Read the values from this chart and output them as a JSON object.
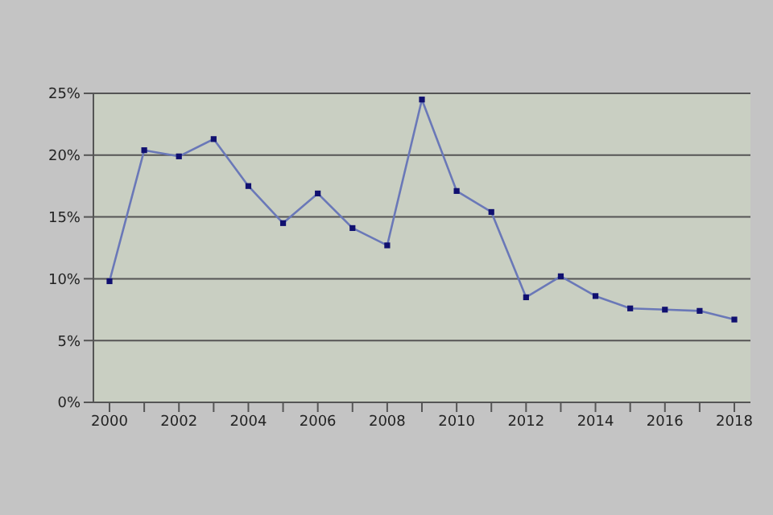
{
  "chart_data": {
    "type": "line",
    "categories": [
      "2000",
      null,
      "2002",
      null,
      "2004",
      null,
      "2006",
      null,
      "2008",
      null,
      "2010",
      null,
      "2012",
      null,
      "2014",
      null,
      "2016",
      null,
      "2018"
    ],
    "series": [
      {
        "color": "#6a78b8",
        "values": [
          9.8,
          20.4,
          19.9,
          21.3,
          17.5,
          14.5,
          16.9,
          14.1,
          12.7,
          24.5,
          17.1,
          15.4,
          8.5,
          10.2,
          8.6,
          7.6,
          7.5,
          7.4,
          6.7
        ]
      }
    ],
    "ylim": [
      0,
      25
    ],
    "yticks": [
      {
        "value": 0,
        "label": "0%"
      },
      {
        "value": 5,
        "label": "5%"
      },
      {
        "value": 10,
        "label": "10%"
      },
      {
        "value": 15,
        "label": "15%"
      },
      {
        "value": 20,
        "label": "20%"
      },
      {
        "value": 25,
        "label": "25%"
      }
    ],
    "grid": "y",
    "legend": false,
    "marker": "square",
    "line_style": "solid"
  }
}
